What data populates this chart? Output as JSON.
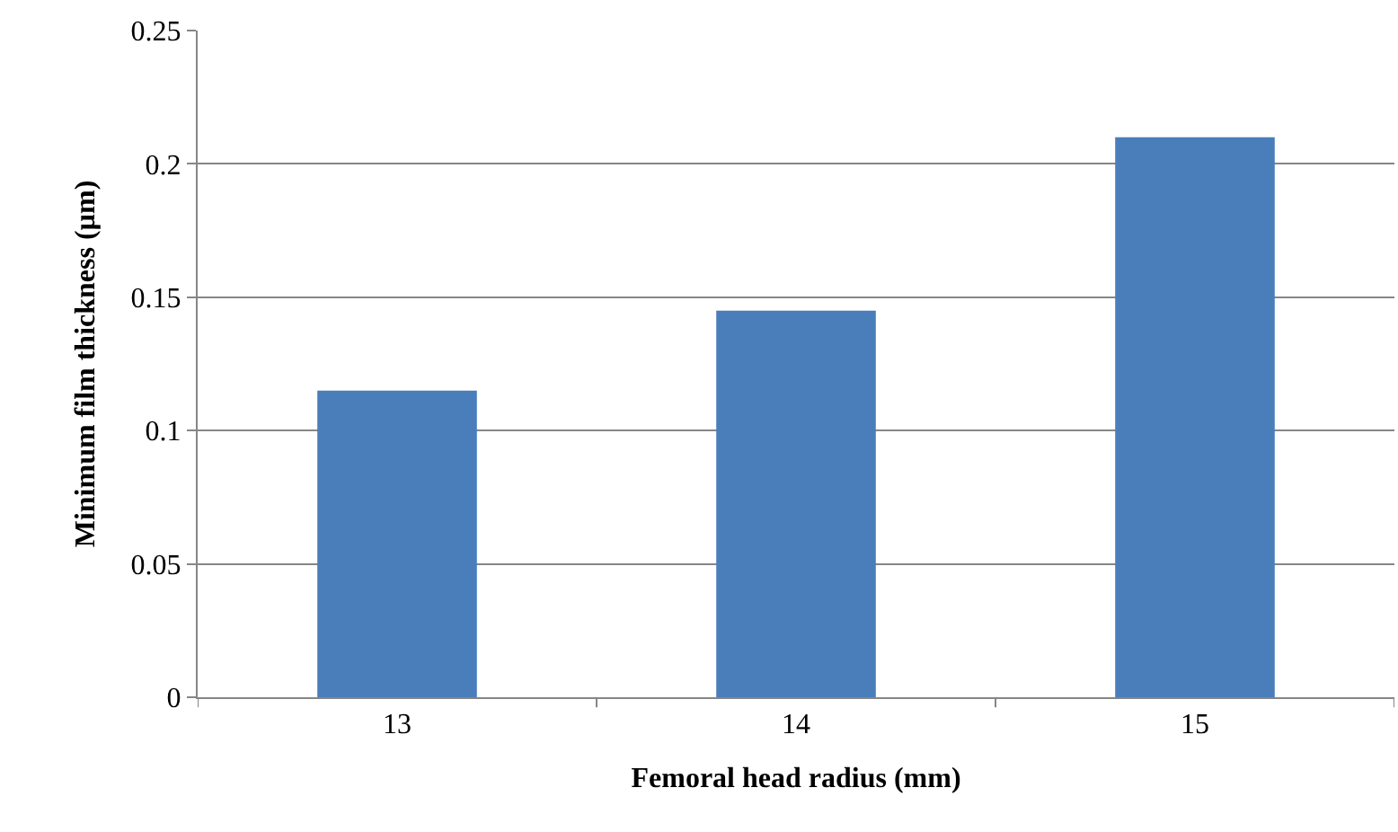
{
  "chart_data": {
    "type": "bar",
    "xlabel": "Femoral head radius (mm)",
    "ylabel": "Minimum film thickness (µm)",
    "categories": [
      "13",
      "14",
      "15"
    ],
    "values": [
      0.115,
      0.145,
      0.21
    ],
    "color": "#4a7ebb",
    "ylim": [
      0,
      0.25
    ],
    "yticks": [
      0,
      0.05,
      0.1,
      0.15,
      0.2,
      0.25
    ],
    "grid": "y"
  }
}
